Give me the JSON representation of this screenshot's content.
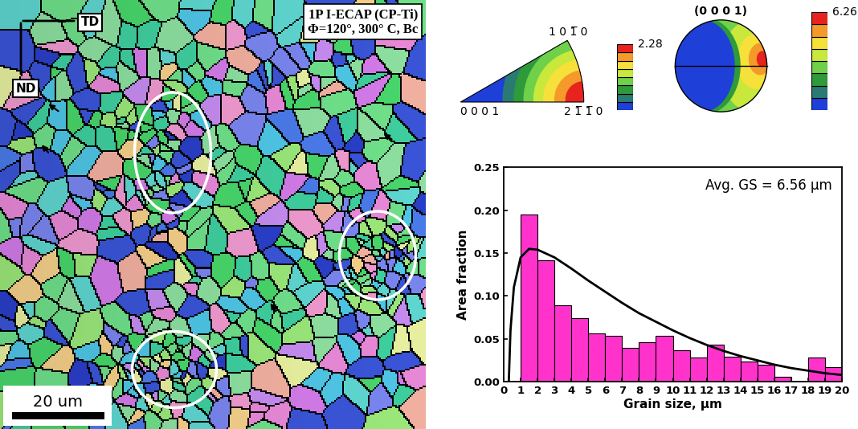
{
  "map": {
    "direction_labels": [
      "TD",
      "ND"
    ],
    "title_lines": [
      "1P I-ECAP (CP-Ti)",
      "Φ=120°, 300° C, Bc"
    ],
    "scale_bar": "20 um"
  },
  "inverse_pole_figure": {
    "corner_labels": [
      "0 0 0 1",
      "1 0 1̅ 0",
      "2 1̅ 1̅ 0"
    ],
    "colorbar": {
      "range": [
        0,
        2.28
      ],
      "colors": [
        "#1f3fd9",
        "#2a7a74",
        "#2e9a3a",
        "#6fd04a",
        "#c8e83c",
        "#f5e13a",
        "#f59a2a",
        "#e8231e"
      ]
    }
  },
  "pole_figure": {
    "title": "(0 0 0 1)",
    "colorbar": {
      "range": [
        0,
        6.26
      ],
      "colors": [
        "#1f3fd9",
        "#2a7a74",
        "#2e9a3a",
        "#6fd04a",
        "#c8e83c",
        "#f5e13a",
        "#f59a2a",
        "#e8231e"
      ]
    }
  },
  "chart_data": {
    "type": "histogram",
    "xlabel": "Grain size, μm",
    "ylabel": "Area fraction",
    "annotation": "Avg. GS = 6.56 μm",
    "bins": [
      1,
      2,
      3,
      4,
      5,
      6,
      7,
      8,
      9,
      10,
      11,
      12,
      13,
      14,
      15,
      16,
      17,
      18,
      19,
      20
    ],
    "values": [
      0.195,
      0.142,
      0.089,
      0.074,
      0.056,
      0.054,
      0.04,
      0.046,
      0.054,
      0.037,
      0.028,
      0.043,
      0.029,
      0.024,
      0.02,
      0.006,
      0.0,
      0.028,
      0.017
    ],
    "color": "#ff33cc",
    "series": [
      {
        "type": "line",
        "color": "#000000",
        "x": [
          0.3,
          0.4,
          0.6,
          1.0,
          1.5,
          2,
          3,
          4,
          5,
          6,
          7,
          8,
          9,
          10,
          11,
          12,
          13,
          14,
          15,
          16,
          17,
          18,
          19,
          20
        ],
        "values": [
          0.0,
          0.06,
          0.11,
          0.145,
          0.155,
          0.154,
          0.145,
          0.132,
          0.118,
          0.105,
          0.092,
          0.08,
          0.07,
          0.06,
          0.051,
          0.043,
          0.036,
          0.03,
          0.025,
          0.02,
          0.016,
          0.013,
          0.01,
          0.008
        ]
      }
    ],
    "xlim": [
      0,
      20
    ],
    "xticks": [
      0,
      1,
      2,
      3,
      4,
      5,
      6,
      7,
      8,
      9,
      10,
      11,
      12,
      13,
      14,
      15,
      16,
      17,
      18,
      19,
      20
    ],
    "ylim": [
      0,
      0.25
    ],
    "yticks": [
      {
        "value": 0.0,
        "label": "0.00"
      },
      {
        "value": 0.05,
        "label": "0.05"
      },
      {
        "value": 0.1,
        "label": "0.10"
      },
      {
        "value": 0.15,
        "label": "0.15"
      },
      {
        "value": 0.2,
        "label": "0.20"
      },
      {
        "value": 0.25,
        "label": "0.25"
      }
    ]
  }
}
